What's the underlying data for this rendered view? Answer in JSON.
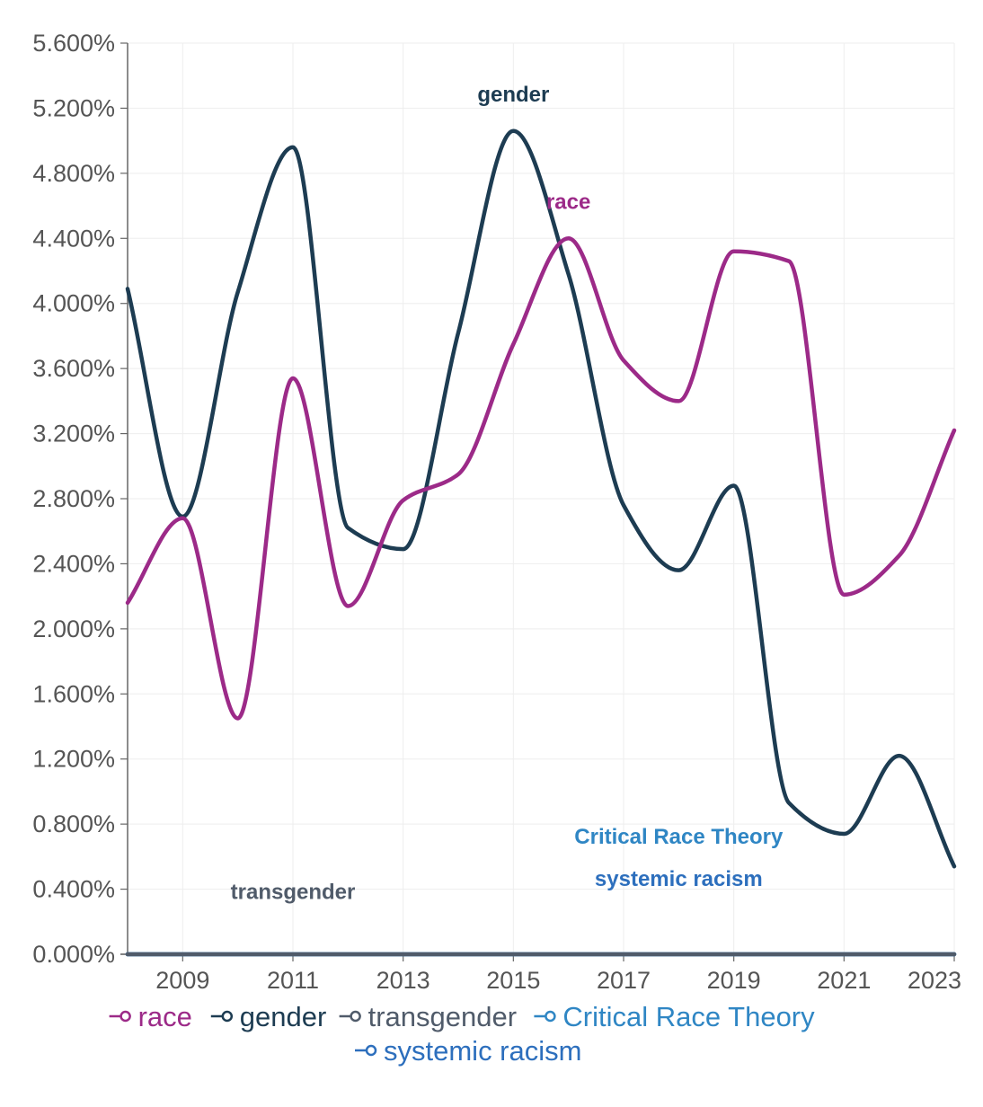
{
  "chart_data": {
    "type": "line",
    "title": "",
    "xlabel": "",
    "ylabel": "",
    "x": [
      2008,
      2009,
      2010,
      2011,
      2012,
      2013,
      2014,
      2015,
      2016,
      2017,
      2018,
      2019,
      2020,
      2021,
      2022,
      2023
    ],
    "xlim": [
      2008,
      2023
    ],
    "ylim": [
      0,
      5.6
    ],
    "x_ticks": [
      2009,
      2011,
      2013,
      2015,
      2017,
      2019,
      2021,
      2023
    ],
    "x_tick_labels": [
      "2009",
      "2011",
      "2013",
      "2015",
      "2017",
      "2019",
      "2021",
      "2023"
    ],
    "y_ticks": [
      0,
      0.4,
      0.8,
      1.2,
      1.6,
      2.0,
      2.4,
      2.8,
      3.2,
      3.6,
      4.0,
      4.4,
      4.8,
      5.2,
      5.6
    ],
    "y_tick_labels": [
      "0.000%",
      "0.400%",
      "0.800%",
      "1.200%",
      "1.600%",
      "2.000%",
      "2.400%",
      "2.800%",
      "3.200%",
      "3.600%",
      "4.000%",
      "4.400%",
      "4.800%",
      "5.200%",
      "5.600%"
    ],
    "grid": true,
    "legend_position": "bottom",
    "series": [
      {
        "name": "race",
        "color": "#9c2a88",
        "values": [
          2.16,
          2.68,
          1.45,
          3.54,
          2.14,
          2.79,
          2.95,
          3.75,
          4.4,
          3.65,
          3.4,
          4.32,
          4.26,
          2.21,
          2.45,
          3.22
        ],
        "label": "race",
        "label_at": [
          2016,
          4.58
        ]
      },
      {
        "name": "gender",
        "color": "#1d3c52",
        "values": [
          4.09,
          2.69,
          4.07,
          4.96,
          2.62,
          2.49,
          3.82,
          5.06,
          4.18,
          2.76,
          2.36,
          2.88,
          0.93,
          0.74,
          1.22,
          0.54
        ],
        "label": "gender",
        "label_at": [
          2015,
          5.24
        ]
      },
      {
        "name": "transgender",
        "color": "#505b6a",
        "values": [
          0,
          0,
          0,
          0,
          0,
          0,
          0,
          0,
          0,
          0,
          0,
          0,
          0,
          0,
          0,
          0
        ],
        "label": "transgender",
        "label_at": [
          2011,
          0.34
        ]
      },
      {
        "name": "Critical Race Theory",
        "color": "#2f86c4",
        "values": [
          0,
          0,
          0,
          0,
          0,
          0,
          0,
          0,
          0,
          0,
          0,
          0,
          0,
          0,
          0,
          0
        ],
        "label": "Critical Race Theory",
        "label_at": [
          2018,
          0.68
        ]
      },
      {
        "name": "systemic racism",
        "color": "#2d6fbd",
        "values": [
          0,
          0,
          0,
          0,
          0,
          0,
          0,
          0,
          0,
          0,
          0,
          0,
          0,
          0,
          0,
          0
        ],
        "label": "systemic racism",
        "label_at": [
          2018,
          0.42
        ]
      }
    ]
  }
}
